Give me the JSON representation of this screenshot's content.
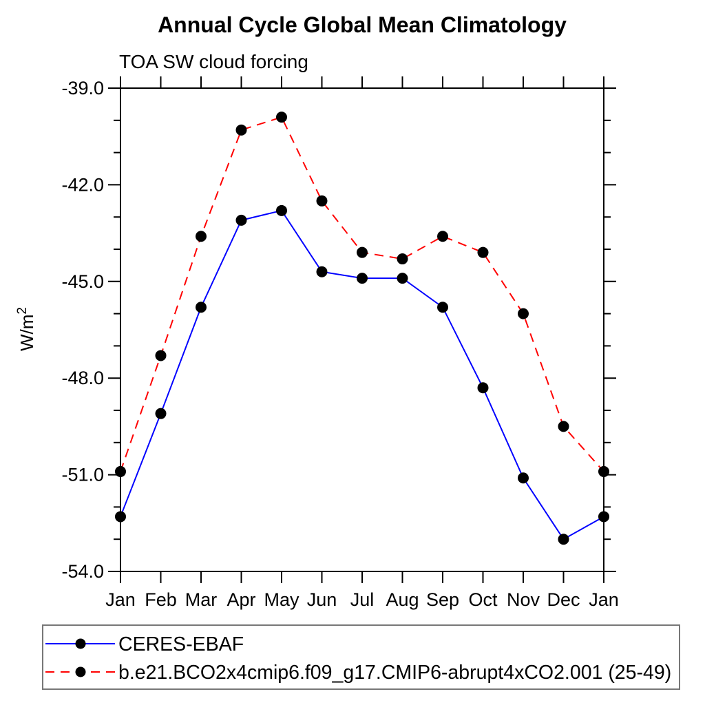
{
  "chart_data": {
    "type": "line",
    "title": "Annual Cycle Global Mean Climatology",
    "subtitle": "TOA SW cloud forcing",
    "ylabel_base": "W/m",
    "ylabel_sup": "2",
    "categories": [
      "Jan",
      "Feb",
      "Mar",
      "Apr",
      "May",
      "Jun",
      "Jul",
      "Aug",
      "Sep",
      "Oct",
      "Nov",
      "Dec",
      "Jan"
    ],
    "ylim": [
      -54.0,
      -39.0
    ],
    "ytick_major_values": [
      -39.0,
      -42.0,
      -45.0,
      -48.0,
      -51.0,
      -54.0
    ],
    "ytick_labels": [
      "-39.0",
      "-42.0",
      "-45.0",
      "-48.0",
      "-51.0",
      "-54.0"
    ],
    "ytick_minor_interval": 1,
    "grid": false,
    "legend_position": "bottom",
    "frame_color": "#000000",
    "series": [
      {
        "name": "CERES-EBAF",
        "color": "#0000ff",
        "dash": "solid",
        "marker": "circle",
        "marker_color": "#000000",
        "values": [
          -52.3,
          -49.1,
          -45.8,
          -43.1,
          -42.8,
          -44.7,
          -44.9,
          -44.9,
          -45.8,
          -48.3,
          -51.1,
          -53.0,
          -52.3
        ]
      },
      {
        "name": "b.e21.BCO2x4cmip6.f09_g17.CMIP6-abrupt4xCO2.001 (25-49)",
        "color": "#ff0000",
        "dash": "dashed",
        "marker": "circle",
        "marker_color": "#000000",
        "values": [
          -50.9,
          -47.3,
          -43.6,
          -40.3,
          -39.9,
          -42.5,
          -44.1,
          -44.3,
          -43.6,
          -44.1,
          -46.0,
          -49.5,
          -50.9
        ]
      }
    ]
  }
}
